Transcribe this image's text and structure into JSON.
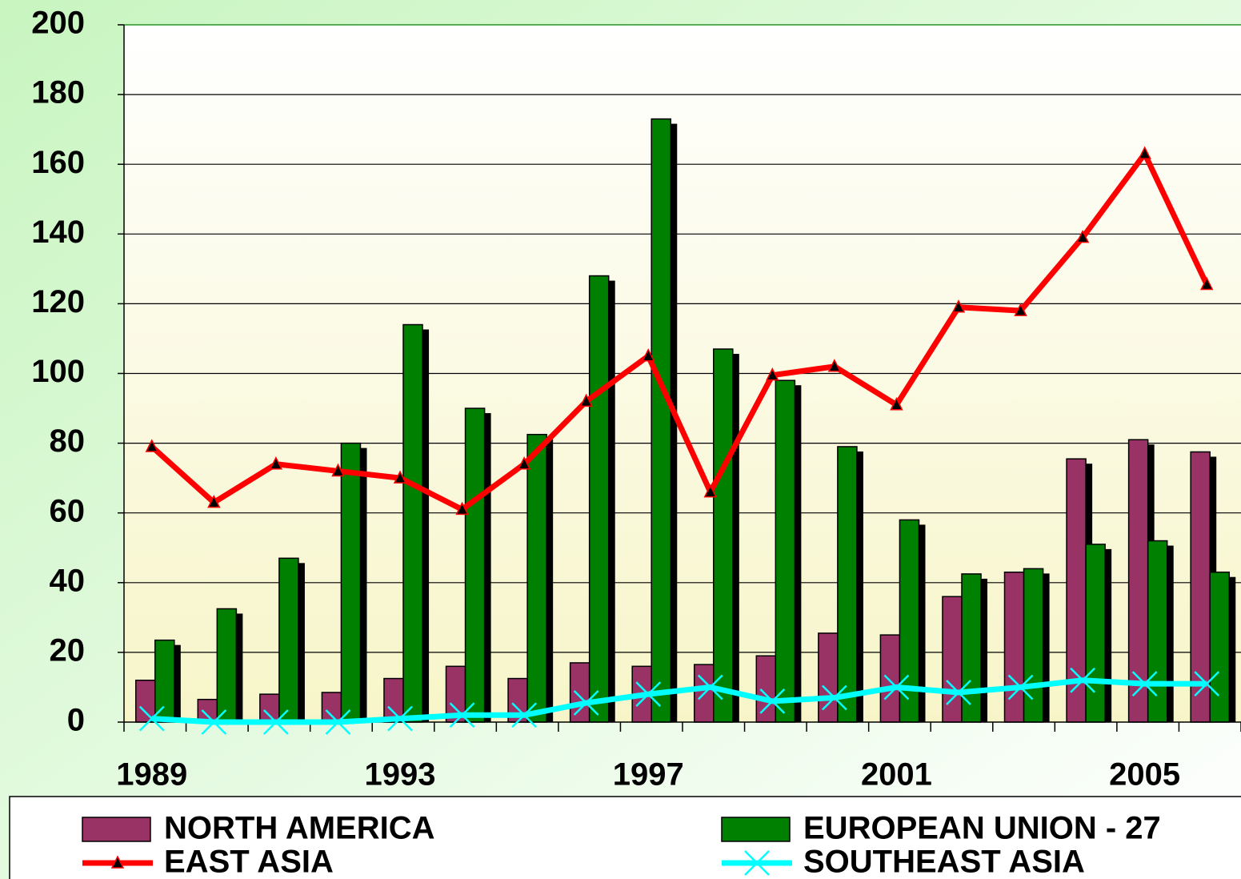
{
  "chart_data": {
    "type": "bar",
    "categories": [
      "1989",
      null,
      null,
      null,
      "1993",
      null,
      null,
      null,
      "1997",
      null,
      null,
      null,
      "2001",
      null,
      null,
      null,
      "2005",
      null
    ],
    "series": [
      {
        "name": "NORTH AMERICA",
        "type": "bar",
        "color": "#993366",
        "values": [
          12,
          6.5,
          8,
          8.5,
          12.5,
          16,
          12.5,
          17,
          16,
          16.5,
          19,
          25.5,
          25,
          36,
          43,
          75.5,
          81,
          77.5
        ]
      },
      {
        "name": "EUROPEAN UNION - 27",
        "type": "bar",
        "color": "#008000",
        "values": [
          23.5,
          32.5,
          47,
          80,
          114,
          90,
          82.5,
          128,
          173,
          107,
          98,
          79,
          58,
          42.5,
          44,
          51,
          52,
          43
        ]
      },
      {
        "name": "EAST ASIA",
        "type": "line",
        "marker": "triangle",
        "color": "#ff0000",
        "values": [
          79,
          63,
          74,
          72,
          70,
          61,
          74,
          92,
          105,
          66,
          99.5,
          102,
          91,
          119,
          118,
          139,
          163,
          125.5
        ]
      },
      {
        "name": "SOUTHEAST ASIA",
        "type": "line",
        "marker": "x",
        "color": "#00ffff",
        "values": [
          1,
          0,
          0,
          0,
          1,
          2,
          2,
          5.5,
          8,
          10,
          6,
          7,
          10,
          8.5,
          10,
          12,
          11,
          11
        ]
      }
    ],
    "ylim": [
      0,
      200
    ],
    "yticks": [
      0,
      20,
      40,
      60,
      80,
      100,
      120,
      140,
      160,
      180,
      200
    ],
    "grid": true,
    "legend": "bottom"
  }
}
